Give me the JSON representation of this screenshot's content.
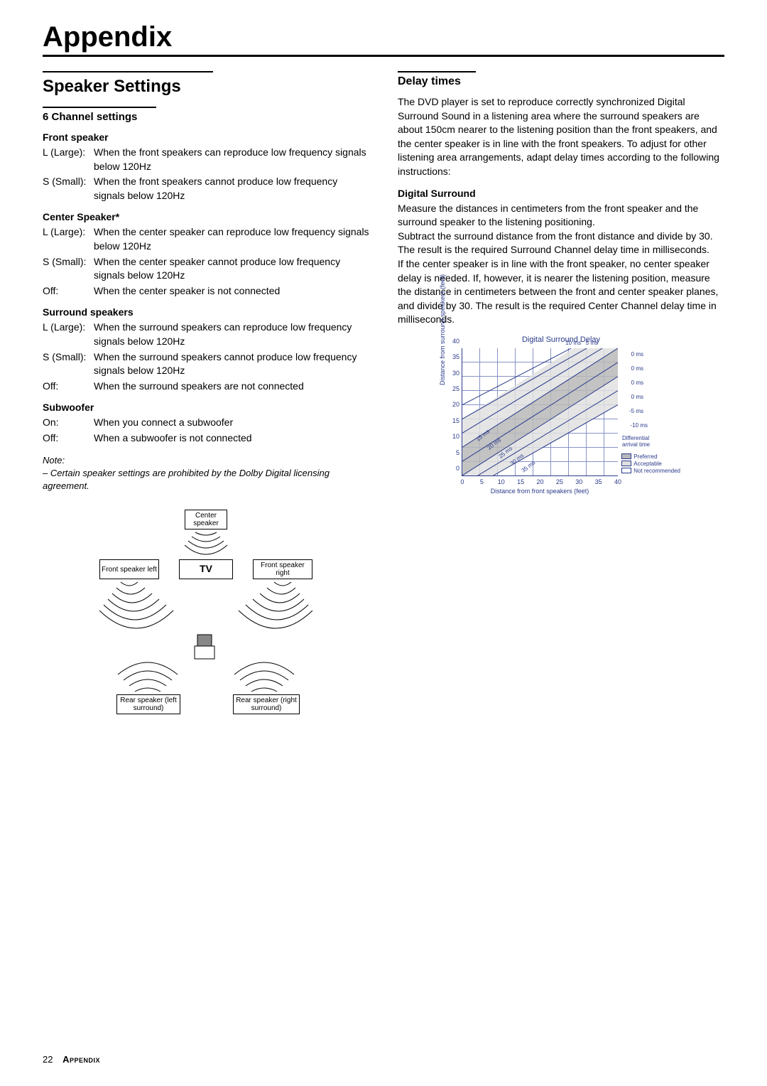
{
  "page": {
    "title": "Appendix",
    "number": "22",
    "footer": "Appendix"
  },
  "left": {
    "section_title": "Speaker Settings",
    "channel_title": "6 Channel settings",
    "groups": [
      {
        "head": "Front speaker",
        "rows": [
          {
            "label": "L (Large):",
            "desc": "When the front speakers can reproduce low frequency signals below 120Hz"
          },
          {
            "label": "S (Small):",
            "desc": "When the front speakers cannot produce low frequency signals below 120Hz"
          }
        ]
      },
      {
        "head": "Center Speaker*",
        "rows": [
          {
            "label": "L (Large):",
            "desc": "When the center speaker can reproduce low frequency signals below 120Hz"
          },
          {
            "label": "S (Small):",
            "desc": "When the center speaker cannot produce low frequency signals below 120Hz"
          },
          {
            "label": "Off:",
            "desc": "When the center speaker is not connected"
          }
        ]
      },
      {
        "head": "Surround speakers",
        "rows": [
          {
            "label": "L (Large):",
            "desc": "When the surround speakers can reproduce  low frequency signals below 120Hz"
          },
          {
            "label": "S (Small):",
            "desc": "When the surround speakers cannot produce low frequency signals below 120Hz"
          },
          {
            "label": "Off:",
            "desc": "When the surround speakers are not connected"
          }
        ]
      },
      {
        "head": "Subwoofer",
        "rows": [
          {
            "label": "On:",
            "desc": "When you connect a subwoofer"
          },
          {
            "label": "Off:",
            "desc": "When a subwoofer is not connected"
          }
        ]
      }
    ],
    "note_label": "Note:",
    "note_body": "–   Certain speaker settings are prohibited by the Dolby Digital licensing agreement.",
    "diagram": {
      "center": "Center\nspeaker",
      "tv": "TV",
      "fl": "Front speaker\nleft",
      "fr": "Front speaker\nright",
      "rl": "Rear speaker\n(left surround)",
      "rr": "Rear speaker\n(right surround)"
    }
  },
  "right": {
    "section_title": "Delay times",
    "intro": "The DVD player is set to reproduce correctly synchronized Digital Surround Sound in a listening area where the surround speakers are about 150cm nearer to the listening position than the front speakers, and the center speaker is in line with the front speakers. To adjust for other listening area arrangements, adapt delay times according to the following instructions:",
    "ds_head": "Digital Surround",
    "ds_p1": "Measure the distances in centimeters from the front speaker and the surround speaker to the listening positioning.",
    "ds_p2": "Subtract the surround distance from the front distance and divide by 30. The result is the required Surround Channel delay time in milliseconds.",
    "ds_p3": "If the center speaker is in line with the front speaker, no center speaker delay is needed. If, however, it is nearer the listening position, measure the distance in centimeters between the front and center speaker planes, and divide by 30. The result is the required Center Channel delay time in milliseconds.",
    "chart": {
      "title": "Digital Surround Delay",
      "y_label": "Distance from surround speakers (feet)",
      "x_label": "Distance from front speakers (feet)",
      "y_ticks": [
        "0",
        "5",
        "10",
        "15",
        "20",
        "25",
        "30",
        "35",
        "40"
      ],
      "x_ticks": [
        "0",
        "5",
        "10",
        "15",
        "20",
        "25",
        "30",
        "35",
        "40"
      ],
      "top_labels": [
        "10 ms",
        "5 ms"
      ],
      "right_labels": [
        "0 ms",
        "0 ms",
        "0 ms",
        "0 ms",
        "-5 ms",
        "-10 ms",
        "Differential\narrival time"
      ],
      "diag_labels": [
        "15 ms",
        "20 ms",
        "25 ms",
        "30 ms",
        "35 ms"
      ],
      "legend": {
        "preferred": "Preferred",
        "acceptable": "Acceptable",
        "notrec": "Not recommended"
      },
      "colors": {
        "line": "#2a3a8a",
        "grid": "#8892c8",
        "pref_fill": "#b8b8b8",
        "acc_fill": "#e0e0e0",
        "not_fill": "#ffffff"
      }
    }
  }
}
